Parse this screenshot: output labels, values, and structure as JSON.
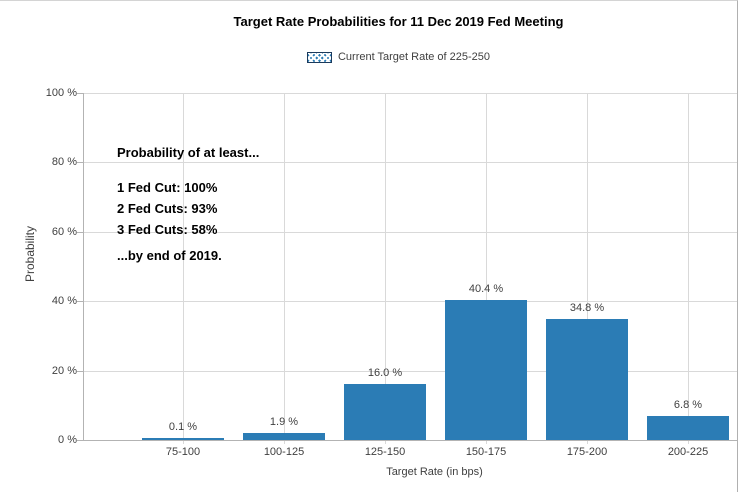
{
  "chart_data": {
    "type": "bar",
    "title": "Target Rate Probabilities for 11 Dec 2019 Fed Meeting",
    "legend": {
      "swatch": "blue-crosshatch-swatch",
      "label": "Current Target Rate of 225-250",
      "position": "top-center"
    },
    "categories": [
      "75-100",
      "100-125",
      "125-150",
      "150-175",
      "175-200",
      "200-225"
    ],
    "values": [
      0.1,
      1.9,
      16.0,
      40.4,
      34.8,
      6.8
    ],
    "value_labels": [
      "0.1 %",
      "1.9 %",
      "16.0 %",
      "40.4 %",
      "34.8 %",
      "6.8 %"
    ],
    "xlabel": "Target Rate (in bps)",
    "ylabel": "Probability",
    "y_ticks": [
      {
        "label": "100 %",
        "value": 100
      },
      {
        "label": "80 %",
        "value": 80
      },
      {
        "label": "60 %",
        "value": 60
      },
      {
        "label": "40 %",
        "value": 40
      },
      {
        "label": "20 %",
        "value": 20
      },
      {
        "label": "0 %",
        "value": 0
      }
    ],
    "ylim": [
      0,
      100
    ],
    "grid": true,
    "annotation_lines": [
      "Probability of at least...",
      "1 Fed Cut: 100%",
      "2 Fed Cuts: 93%",
      "3 Fed Cuts: 58%",
      "...by end of 2019."
    ],
    "bar_color": "#2b7cb5"
  },
  "colors": {
    "bar": "#2b7cb5",
    "gridline": "#d9d9d9",
    "axis": "#b3b3b3",
    "tick_text": "#404040",
    "title_text": "#000000",
    "legend_border": "#1b3a5c",
    "background": "#ffffff"
  }
}
